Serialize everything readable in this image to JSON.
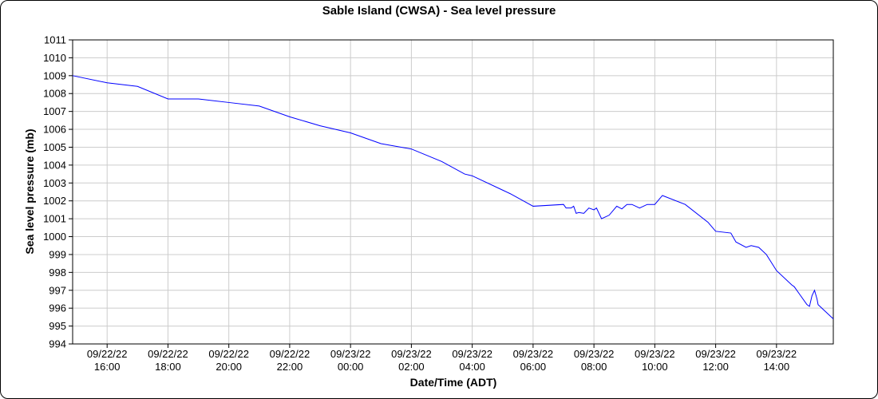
{
  "chart_data": {
    "type": "line",
    "title": "Sable Island (CWSA) - Sea level pressure",
    "xlabel": "Date/Time (ADT)",
    "ylabel": "Sea level pressure (mb)",
    "ylim": [
      994,
      1011
    ],
    "yticks": [
      "994",
      "995",
      "996",
      "997",
      "998",
      "999",
      "1000",
      "1001",
      "1002",
      "1003",
      "1004",
      "1005",
      "1006",
      "1007",
      "1008",
      "1009",
      "1010",
      "1011"
    ],
    "xlim": [
      "09/22/22 14:52",
      "09/23/22 15:52"
    ],
    "xticks": [
      {
        "date": "09/22/22",
        "time": "16:00"
      },
      {
        "date": "09/22/22",
        "time": "18:00"
      },
      {
        "date": "09/22/22",
        "time": "20:00"
      },
      {
        "date": "09/22/22",
        "time": "22:00"
      },
      {
        "date": "09/23/22",
        "time": "00:00"
      },
      {
        "date": "09/23/22",
        "time": "02:00"
      },
      {
        "date": "09/23/22",
        "time": "04:00"
      },
      {
        "date": "09/23/22",
        "time": "06:00"
      },
      {
        "date": "09/23/22",
        "time": "08:00"
      },
      {
        "date": "09/23/22",
        "time": "10:00"
      },
      {
        "date": "09/23/22",
        "time": "12:00"
      },
      {
        "date": "09/23/22",
        "time": "14:00"
      }
    ],
    "grid": true,
    "series": [
      {
        "color": "#0000ff",
        "points": [
          [
            "09/22/22 14:52",
            1009.0
          ],
          [
            "09/22/22 16:00",
            1008.6
          ],
          [
            "09/22/22 17:00",
            1008.4
          ],
          [
            "09/22/22 18:00",
            1007.7
          ],
          [
            "09/22/22 19:00",
            1007.7
          ],
          [
            "09/22/22 20:00",
            1007.5
          ],
          [
            "09/22/22 21:00",
            1007.3
          ],
          [
            "09/22/22 22:00",
            1006.7
          ],
          [
            "09/22/22 23:00",
            1006.2
          ],
          [
            "09/23/22 00:00",
            1005.8
          ],
          [
            "09/23/22 01:00",
            1005.2
          ],
          [
            "09/23/22 02:00",
            1004.9
          ],
          [
            "09/23/22 03:00",
            1004.2
          ],
          [
            "09/23/22 03:45",
            1003.5
          ],
          [
            "09/23/22 04:00",
            1003.4
          ],
          [
            "09/23/22 05:00",
            1002.6
          ],
          [
            "09/23/22 05:15",
            1002.4
          ],
          [
            "09/23/22 06:00",
            1001.7
          ],
          [
            "09/23/22 07:00",
            1001.8
          ],
          [
            "09/23/22 07:05",
            1001.6
          ],
          [
            "09/23/22 07:15",
            1001.6
          ],
          [
            "09/23/22 07:20",
            1001.7
          ],
          [
            "09/23/22 07:25",
            1001.3
          ],
          [
            "09/23/22 07:30",
            1001.35
          ],
          [
            "09/23/22 07:40",
            1001.3
          ],
          [
            "09/23/22 07:50",
            1001.6
          ],
          [
            "09/23/22 08:00",
            1001.5
          ],
          [
            "09/23/22 08:05",
            1001.6
          ],
          [
            "09/23/22 08:15",
            1001.0
          ],
          [
            "09/23/22 08:30",
            1001.2
          ],
          [
            "09/23/22 08:45",
            1001.7
          ],
          [
            "09/23/22 08:55",
            1001.55
          ],
          [
            "09/23/22 09:05",
            1001.8
          ],
          [
            "09/23/22 09:15",
            1001.8
          ],
          [
            "09/23/22 09:30",
            1001.6
          ],
          [
            "09/23/22 09:45",
            1001.8
          ],
          [
            "09/23/22 10:00",
            1001.8
          ],
          [
            "09/23/22 10:15",
            1002.3
          ],
          [
            "09/23/22 11:00",
            1001.8
          ],
          [
            "09/23/22 11:45",
            1000.8
          ],
          [
            "09/23/22 12:00",
            1000.3
          ],
          [
            "09/23/22 12:30",
            1000.2
          ],
          [
            "09/23/22 12:40",
            999.7
          ],
          [
            "09/23/22 13:00",
            999.4
          ],
          [
            "09/23/22 13:10",
            999.5
          ],
          [
            "09/23/22 13:25",
            999.4
          ],
          [
            "09/23/22 13:40",
            999.0
          ],
          [
            "09/23/22 14:00",
            998.1
          ],
          [
            "09/23/22 14:30",
            997.3
          ],
          [
            "09/23/22 14:35",
            997.2
          ],
          [
            "09/23/22 14:45",
            996.8
          ],
          [
            "09/23/22 15:00",
            996.2
          ],
          [
            "09/23/22 15:05",
            996.1
          ],
          [
            "09/23/22 15:10",
            996.7
          ],
          [
            "09/23/22 15:15",
            997.0
          ],
          [
            "09/23/22 15:20",
            996.5
          ],
          [
            "09/23/22 15:22",
            996.2
          ],
          [
            "09/23/22 15:52",
            995.4
          ]
        ]
      }
    ]
  }
}
